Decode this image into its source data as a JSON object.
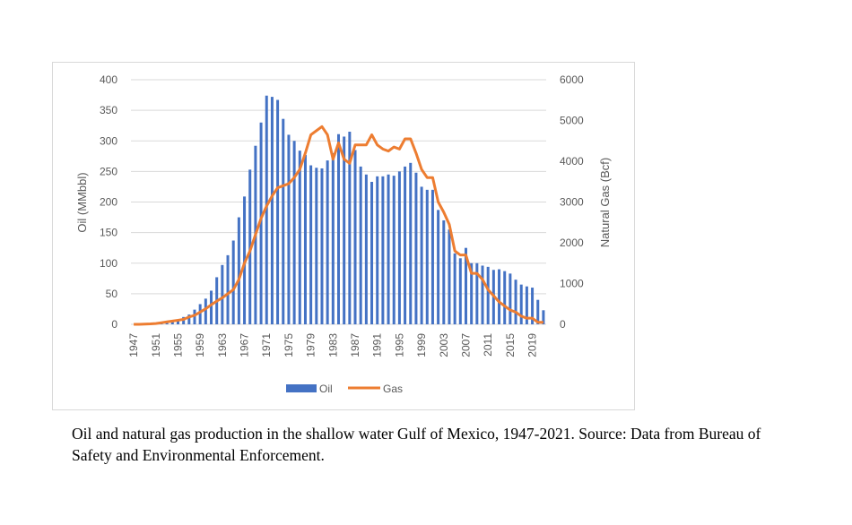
{
  "chart_data": {
    "type": "bar+line",
    "categories": [
      1947,
      1948,
      1949,
      1950,
      1951,
      1952,
      1953,
      1954,
      1955,
      1956,
      1957,
      1958,
      1959,
      1960,
      1961,
      1962,
      1963,
      1964,
      1965,
      1966,
      1967,
      1968,
      1969,
      1970,
      1971,
      1972,
      1973,
      1974,
      1975,
      1976,
      1977,
      1978,
      1979,
      1980,
      1981,
      1982,
      1983,
      1984,
      1985,
      1986,
      1987,
      1988,
      1989,
      1990,
      1991,
      1992,
      1993,
      1994,
      1995,
      1996,
      1997,
      1998,
      1999,
      2000,
      2001,
      2002,
      2003,
      2004,
      2005,
      2006,
      2007,
      2008,
      2009,
      2010,
      2011,
      2012,
      2013,
      2014,
      2015,
      2016,
      2017,
      2018,
      2019,
      2020,
      2021
    ],
    "x_tick_labels": [
      "1947",
      "1951",
      "1955",
      "1959",
      "1963",
      "1967",
      "1971",
      "1975",
      "1979",
      "1983",
      "1987",
      "1991",
      "1995",
      "1999",
      "2003",
      "2007",
      "2011",
      "2015",
      "2019"
    ],
    "series": [
      {
        "name": "Oil",
        "type": "bar",
        "axis": "left",
        "color": "#4472c4",
        "values": [
          0,
          0,
          0,
          1,
          1,
          2,
          3,
          5,
          8,
          12,
          16,
          24,
          33,
          42,
          55,
          77,
          97,
          113,
          137,
          175,
          209,
          253,
          292,
          330,
          374,
          372,
          367,
          336,
          310,
          300,
          284,
          277,
          260,
          256,
          255,
          268,
          280,
          311,
          307,
          315,
          285,
          258,
          245,
          233,
          242,
          242,
          245,
          243,
          250,
          258,
          264,
          248,
          225,
          220,
          220,
          187,
          170,
          155,
          116,
          108,
          125,
          100,
          100,
          96,
          94,
          89,
          90,
          87,
          83,
          73,
          65,
          62,
          60,
          40,
          23
        ]
      },
      {
        "name": "Gas",
        "type": "line",
        "axis": "right",
        "color": "#ed7d31",
        "values": [
          0,
          0,
          5,
          10,
          20,
          40,
          60,
          80,
          100,
          120,
          180,
          220,
          300,
          380,
          480,
          570,
          650,
          750,
          850,
          1100,
          1500,
          1800,
          2200,
          2600,
          2900,
          3150,
          3350,
          3400,
          3450,
          3600,
          3800,
          4200,
          4650,
          4750,
          4850,
          4650,
          4050,
          4450,
          4050,
          3950,
          4400,
          4400,
          4400,
          4650,
          4400,
          4300,
          4250,
          4350,
          4300,
          4550,
          4550,
          4200,
          3800,
          3600,
          3600,
          3000,
          2750,
          2450,
          1800,
          1700,
          1700,
          1250,
          1250,
          1100,
          850,
          700,
          550,
          450,
          350,
          300,
          200,
          150,
          150,
          50,
          50
        ]
      }
    ],
    "ylabel_left": "Oil (MMbbl)",
    "ylabel_right": "Natural Gas (Bcf)",
    "ylim_left": [
      0,
      400
    ],
    "ylim_right": [
      0,
      6000
    ],
    "yticks_left": [
      "0",
      "50",
      "100",
      "150",
      "200",
      "250",
      "300",
      "350",
      "400"
    ],
    "yticks_right": [
      "0",
      "1000",
      "2000",
      "3000",
      "4000",
      "5000",
      "6000"
    ],
    "grid": true,
    "legend": {
      "position": "bottom",
      "items": [
        "Oil",
        "Gas"
      ]
    }
  },
  "caption": "Oil and natural gas production in the shallow water Gulf of Mexico, 1947-2021. Source: Data from Bureau of Safety and Environmental Enforcement."
}
